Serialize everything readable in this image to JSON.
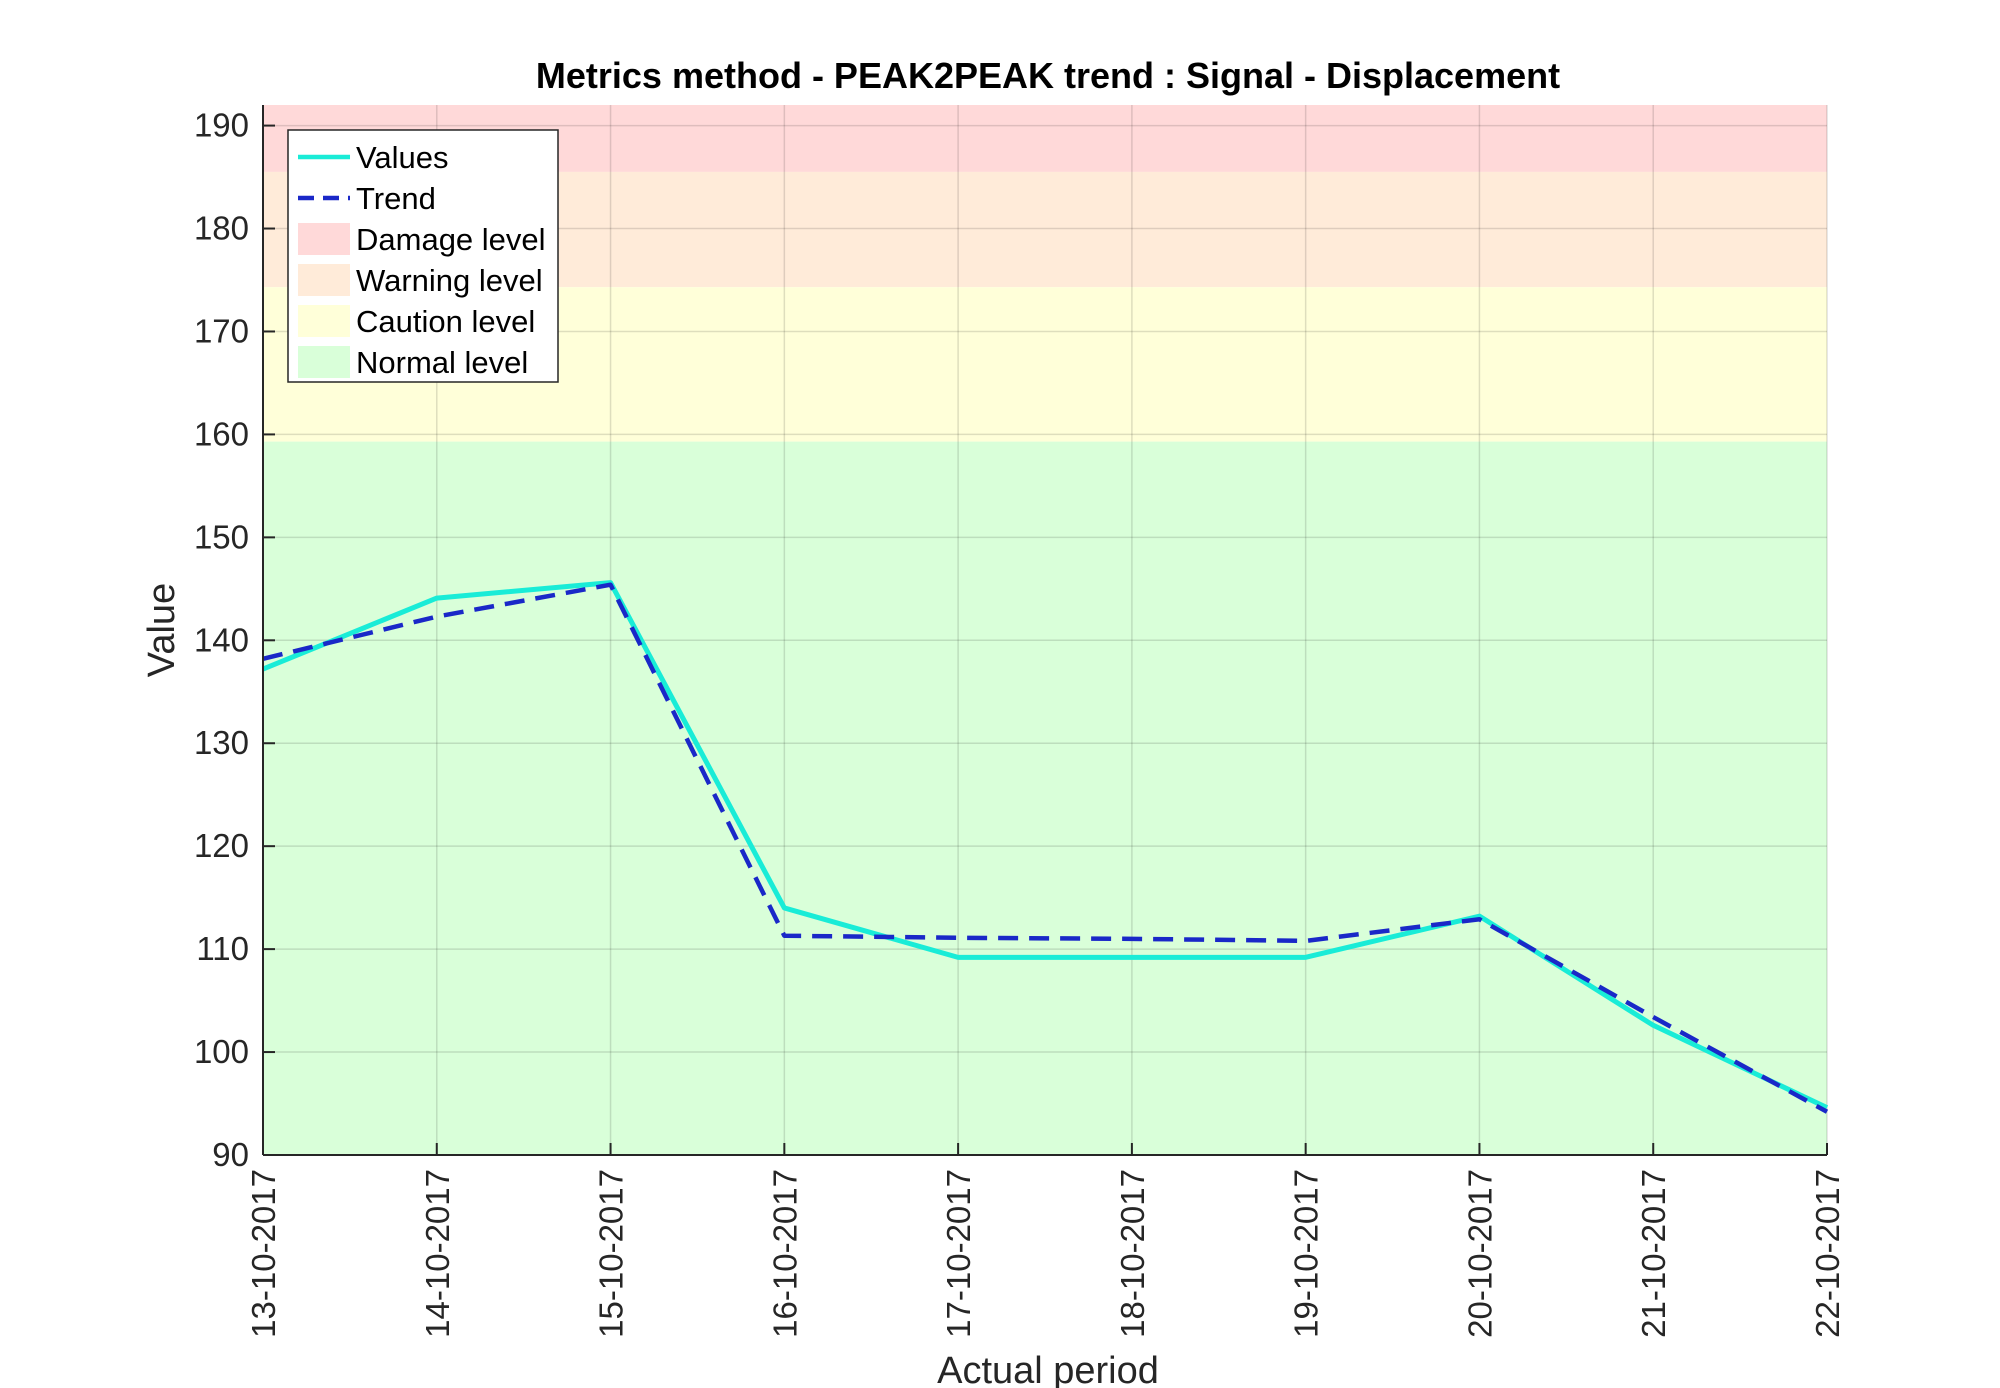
{
  "chart_data": {
    "type": "line",
    "title": "Metrics method - PEAK2PEAK trend : Signal - Displacement",
    "xlabel": "Actual period",
    "ylabel": "Value",
    "ylim": [
      90,
      192
    ],
    "yticks": [
      90,
      100,
      110,
      120,
      130,
      140,
      150,
      160,
      170,
      180,
      190
    ],
    "categories": [
      "13-10-2017",
      "14-10-2017",
      "15-10-2017",
      "16-10-2017",
      "17-10-2017",
      "18-10-2017",
      "19-10-2017",
      "20-10-2017",
      "21-10-2017",
      "22-10-2017"
    ],
    "grid": true,
    "legend_position": "top-left",
    "bands": [
      {
        "name": "Damage level",
        "from": 185.5,
        "to": 192,
        "color": "#ffd9d9"
      },
      {
        "name": "Warning level",
        "from": 174.3,
        "to": 185.5,
        "color": "#ffebd9"
      },
      {
        "name": "Caution level",
        "from": 159.3,
        "to": 174.3,
        "color": "#ffffd9"
      },
      {
        "name": "Normal level",
        "from": 90,
        "to": 159.3,
        "color": "#d9ffd9"
      }
    ],
    "series": [
      {
        "name": "Values",
        "style": "solid",
        "color": "#19ecd7",
        "values": [
          137.2,
          144.1,
          145.6,
          114.0,
          109.2,
          109.2,
          109.2,
          113.2,
          102.6,
          94.6
        ]
      },
      {
        "name": "Trend",
        "style": "dashed",
        "color": "#1a28c8",
        "values": [
          138.2,
          142.3,
          145.4,
          111.3,
          111.1,
          111.0,
          110.8,
          112.9,
          103.4,
          94.2
        ]
      }
    ]
  }
}
